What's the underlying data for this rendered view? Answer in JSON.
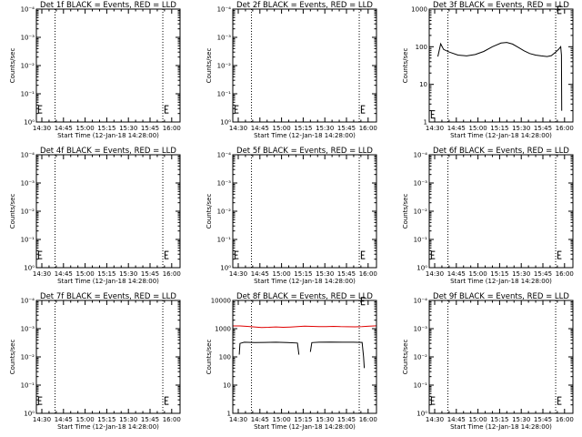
{
  "colors": {
    "events": "#000000",
    "lld": "#e00000",
    "frame": "#000000",
    "background": "#ffffff"
  },
  "x_label": "Start Time (12-Jan-18 14:28:00)",
  "y_label": "Counts/sec",
  "x_ticks": [
    "14:30",
    "14:45",
    "15:00",
    "15:15",
    "15:30",
    "15:45",
    "16:00"
  ],
  "chart_data": [
    {
      "type": "line",
      "title": "Det 1f BLACK = Events, RED = LLD",
      "xlim": [
        0,
        100
      ],
      "dotted_x": [
        13,
        88
      ],
      "yscale": "log",
      "ylim": [
        1,
        10000
      ],
      "y_ticks": [
        {
          "v": 1,
          "l": "10⁰"
        },
        {
          "v": 10,
          "l": "10⁻¹"
        },
        {
          "v": 100,
          "l": "10⁻²"
        },
        {
          "v": 1000,
          "l": "10⁻³"
        },
        {
          "v": 10000,
          "l": "10⁻⁴"
        }
      ],
      "series": [],
      "markers": [
        {
          "x": 1.5,
          "y": 2.8
        },
        {
          "x": 89.5,
          "y": 2.8
        }
      ]
    },
    {
      "type": "line",
      "title": "Det 2f BLACK = Events, RED = LLD",
      "xlim": [
        0,
        100
      ],
      "dotted_x": [
        13,
        88
      ],
      "yscale": "log",
      "ylim": [
        1,
        10000
      ],
      "y_ticks": [
        {
          "v": 1,
          "l": "10⁰"
        },
        {
          "v": 10,
          "l": "10⁻¹"
        },
        {
          "v": 100,
          "l": "10⁻²"
        },
        {
          "v": 1000,
          "l": "10⁻³"
        },
        {
          "v": 10000,
          "l": "10⁻⁴"
        }
      ],
      "series": [],
      "markers": [
        {
          "x": 1.5,
          "y": 2.8
        },
        {
          "x": 89.5,
          "y": 2.8
        }
      ]
    },
    {
      "type": "line",
      "title": "Det 3f BLACK = Events, RED = LLD",
      "xlim": [
        0,
        100
      ],
      "dotted_x": [
        13,
        88
      ],
      "yscale": "log",
      "ylim": [
        1,
        1000
      ],
      "y_ticks": [
        {
          "v": 1,
          "l": "1"
        },
        {
          "v": 10,
          "l": "10"
        },
        {
          "v": 100,
          "l": "100"
        },
        {
          "v": 1000,
          "l": "1000"
        }
      ],
      "series": [
        {
          "color": "events",
          "points": [
            [
              6,
              55
            ],
            [
              8,
              120
            ],
            [
              10,
              85
            ],
            [
              14,
              72
            ],
            [
              20,
              60
            ],
            [
              26,
              57
            ],
            [
              32,
              62
            ],
            [
              38,
              75
            ],
            [
              44,
              100
            ],
            [
              50,
              125
            ],
            [
              54,
              130
            ],
            [
              58,
              118
            ],
            [
              62,
              96
            ],
            [
              66,
              78
            ],
            [
              70,
              66
            ],
            [
              74,
              60
            ],
            [
              78,
              57
            ],
            [
              82,
              55
            ],
            [
              85,
              58
            ],
            [
              88,
              72
            ],
            [
              90,
              85
            ],
            [
              91.5,
              100
            ],
            [
              92,
              60
            ],
            [
              92.2,
              2
            ]
          ]
        }
      ],
      "markers": [
        {
          "x": 1.5,
          "y": 1.6
        },
        {
          "x": 89.5,
          "y": 950
        }
      ]
    },
    {
      "type": "line",
      "title": "Det 4f BLACK = Events, RED = LLD",
      "xlim": [
        0,
        100
      ],
      "dotted_x": [
        13,
        88
      ],
      "yscale": "log",
      "ylim": [
        1,
        10000
      ],
      "y_ticks": [
        {
          "v": 1,
          "l": "10⁰"
        },
        {
          "v": 10,
          "l": "10⁻¹"
        },
        {
          "v": 100,
          "l": "10⁻²"
        },
        {
          "v": 1000,
          "l": "10⁻³"
        },
        {
          "v": 10000,
          "l": "10⁻⁴"
        }
      ],
      "series": [],
      "markers": [
        {
          "x": 1.5,
          "y": 2.8
        },
        {
          "x": 89.5,
          "y": 2.8
        }
      ]
    },
    {
      "type": "line",
      "title": "Det 5f BLACK = Events, RED = LLD",
      "xlim": [
        0,
        100
      ],
      "dotted_x": [
        13,
        88
      ],
      "yscale": "log",
      "ylim": [
        1,
        10000
      ],
      "y_ticks": [
        {
          "v": 1,
          "l": "10⁰"
        },
        {
          "v": 10,
          "l": "10⁻¹"
        },
        {
          "v": 100,
          "l": "10⁻²"
        },
        {
          "v": 1000,
          "l": "10⁻³"
        },
        {
          "v": 10000,
          "l": "10⁻⁴"
        }
      ],
      "series": [],
      "markers": [
        {
          "x": 1.5,
          "y": 2.8
        },
        {
          "x": 89.5,
          "y": 2.8
        }
      ]
    },
    {
      "type": "line",
      "title": "Det 6f BLACK = Events, RED = LLD",
      "xlim": [
        0,
        100
      ],
      "dotted_x": [
        13,
        88
      ],
      "yscale": "log",
      "ylim": [
        1,
        10000
      ],
      "y_ticks": [
        {
          "v": 1,
          "l": "10⁰"
        },
        {
          "v": 10,
          "l": "10⁻¹"
        },
        {
          "v": 100,
          "l": "10⁻²"
        },
        {
          "v": 1000,
          "l": "10⁻³"
        },
        {
          "v": 10000,
          "l": "10⁻⁴"
        }
      ],
      "series": [],
      "markers": [
        {
          "x": 1.5,
          "y": 2.8
        },
        {
          "x": 89.5,
          "y": 2.8
        }
      ]
    },
    {
      "type": "line",
      "title": "Det 7f BLACK = Events, RED = LLD",
      "xlim": [
        0,
        100
      ],
      "dotted_x": [
        13,
        88
      ],
      "yscale": "log",
      "ylim": [
        1,
        10000
      ],
      "y_ticks": [
        {
          "v": 1,
          "l": "10⁰"
        },
        {
          "v": 10,
          "l": "10⁻¹"
        },
        {
          "v": 100,
          "l": "10⁻²"
        },
        {
          "v": 1000,
          "l": "10⁻³"
        },
        {
          "v": 10000,
          "l": "10⁻⁴"
        }
      ],
      "series": [],
      "markers": [
        {
          "x": 1.5,
          "y": 2.8
        },
        {
          "x": 89.5,
          "y": 2.8
        }
      ]
    },
    {
      "type": "line",
      "title": "Det 8f BLACK = Events, RED = LLD",
      "xlim": [
        0,
        100
      ],
      "dotted_x": [
        13,
        88
      ],
      "yscale": "log",
      "ylim": [
        1,
        10000
      ],
      "y_ticks": [
        {
          "v": 1,
          "l": "1"
        },
        {
          "v": 10,
          "l": "10"
        },
        {
          "v": 100,
          "l": "100"
        },
        {
          "v": 1000,
          "l": "1000"
        },
        {
          "v": 10000,
          "l": "10000"
        }
      ],
      "series": [
        {
          "color": "lld",
          "points": [
            [
              0,
              1250
            ],
            [
              5,
              1250
            ],
            [
              10,
              1200
            ],
            [
              15,
              1150
            ],
            [
              20,
              1100
            ],
            [
              25,
              1120
            ],
            [
              30,
              1150
            ],
            [
              35,
              1120
            ],
            [
              40,
              1140
            ],
            [
              45,
              1180
            ],
            [
              50,
              1220
            ],
            [
              55,
              1200
            ],
            [
              60,
              1180
            ],
            [
              65,
              1190
            ],
            [
              70,
              1200
            ],
            [
              75,
              1180
            ],
            [
              80,
              1170
            ],
            [
              85,
              1160
            ],
            [
              90,
              1180
            ],
            [
              95,
              1220
            ],
            [
              100,
              1260
            ]
          ]
        },
        {
          "color": "events",
          "points": [
            [
              4.5,
              120
            ],
            [
              5,
              300
            ],
            [
              8,
              330
            ],
            [
              15,
              320
            ],
            [
              22,
              325
            ],
            [
              30,
              330
            ],
            [
              38,
              320
            ],
            [
              45,
              310
            ],
            [
              46,
              120
            ]
          ]
        },
        {
          "color": "events",
          "points": [
            [
              54,
              150
            ],
            [
              55,
              320
            ],
            [
              60,
              330
            ],
            [
              68,
              335
            ],
            [
              76,
              330
            ],
            [
              84,
              330
            ],
            [
              90,
              325
            ],
            [
              91,
              100
            ],
            [
              91.5,
              40
            ]
          ]
        }
      ],
      "markers": [
        {
          "x": 89.5,
          "y": 9500
        }
      ]
    },
    {
      "type": "line",
      "title": "Det 9f BLACK = Events, RED = LLD",
      "xlim": [
        0,
        100
      ],
      "dotted_x": [
        13,
        88
      ],
      "yscale": "log",
      "ylim": [
        1,
        10000
      ],
      "y_ticks": [
        {
          "v": 1,
          "l": "10⁰"
        },
        {
          "v": 10,
          "l": "10⁻¹"
        },
        {
          "v": 100,
          "l": "10⁻²"
        },
        {
          "v": 1000,
          "l": "10⁻³"
        },
        {
          "v": 10000,
          "l": "10⁻⁴"
        }
      ],
      "series": [],
      "markers": [
        {
          "x": 1.5,
          "y": 2.8
        },
        {
          "x": 89.5,
          "y": 2.8
        }
      ]
    }
  ]
}
